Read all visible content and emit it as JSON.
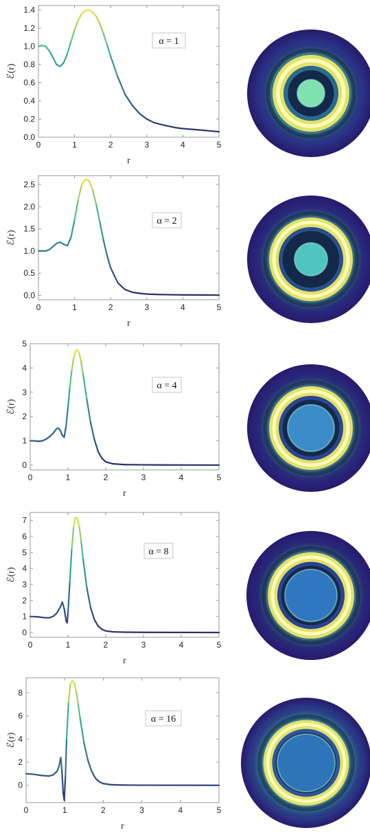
{
  "chart_data": [
    {
      "type": "line",
      "label": "α = 1",
      "xlabel": "r",
      "ylabel": "ℰ(r)",
      "xlim": [
        0,
        5
      ],
      "ylim": [
        0,
        1.45
      ],
      "xticks": [
        "0",
        "1",
        "2",
        "3",
        "4",
        "5"
      ],
      "yticks": [
        "0.0",
        "0.2",
        "0.4",
        "0.6",
        "0.8",
        "1.0",
        "1.2",
        "1.4"
      ],
      "x": [
        0,
        0.1,
        0.2,
        0.3,
        0.4,
        0.5,
        0.6,
        0.7,
        0.8,
        0.9,
        1.0,
        1.1,
        1.2,
        1.3,
        1.4,
        1.5,
        1.6,
        1.7,
        1.8,
        1.9,
        2.0,
        2.2,
        2.4,
        2.6,
        2.8,
        3.0,
        3.2,
        3.5,
        3.8,
        4.0,
        4.3,
        4.6,
        5.0
      ],
      "values": [
        1.0,
        1.01,
        1.0,
        0.95,
        0.88,
        0.8,
        0.78,
        0.82,
        0.92,
        1.05,
        1.18,
        1.29,
        1.36,
        1.395,
        1.4,
        1.38,
        1.33,
        1.25,
        1.14,
        1.02,
        0.89,
        0.66,
        0.47,
        0.35,
        0.26,
        0.2,
        0.16,
        0.13,
        0.105,
        0.095,
        0.085,
        0.075,
        0.06
      ]
    },
    {
      "type": "line",
      "label": "α = 2",
      "xlabel": "r",
      "ylabel": "ℰ(r)",
      "xlim": [
        0,
        5
      ],
      "ylim": [
        -0.1,
        2.7
      ],
      "xticks": [
        "0",
        "1",
        "2",
        "3",
        "4",
        "5"
      ],
      "yticks": [
        "0.0",
        "0.5",
        "1.0",
        "1.5",
        "2.0",
        "2.5"
      ],
      "x": [
        0,
        0.1,
        0.2,
        0.3,
        0.4,
        0.5,
        0.6,
        0.7,
        0.8,
        0.9,
        1.0,
        1.1,
        1.2,
        1.3,
        1.4,
        1.5,
        1.6,
        1.7,
        1.8,
        1.9,
        2.0,
        2.2,
        2.4,
        2.6,
        2.8,
        3.0,
        3.3,
        3.6,
        4.0,
        4.5,
        5.0
      ],
      "values": [
        1.0,
        1.0,
        1.0,
        1.03,
        1.1,
        1.17,
        1.2,
        1.15,
        1.12,
        1.3,
        1.7,
        2.15,
        2.5,
        2.62,
        2.58,
        2.38,
        2.05,
        1.65,
        1.25,
        0.9,
        0.62,
        0.28,
        0.13,
        0.07,
        0.045,
        0.03,
        0.02,
        0.015,
        0.01,
        0.008,
        0.005
      ]
    },
    {
      "type": "line",
      "label": "α = 4",
      "xlabel": "r",
      "ylabel": "ℰ(r)",
      "xlim": [
        0,
        5
      ],
      "ylim": [
        -0.2,
        5
      ],
      "xticks": [
        "0",
        "1",
        "2",
        "3",
        "4",
        "5"
      ],
      "yticks": [
        "0",
        "1",
        "2",
        "3",
        "4",
        "5"
      ],
      "x": [
        0,
        0.1,
        0.2,
        0.3,
        0.4,
        0.5,
        0.6,
        0.7,
        0.75,
        0.8,
        0.85,
        0.9,
        0.95,
        1.0,
        1.05,
        1.1,
        1.15,
        1.2,
        1.25,
        1.3,
        1.35,
        1.4,
        1.5,
        1.6,
        1.7,
        1.8,
        1.9,
        2.0,
        2.2,
        2.5,
        3.0,
        3.5,
        4.0,
        5.0
      ],
      "values": [
        1.0,
        1.0,
        0.98,
        0.99,
        1.05,
        1.15,
        1.3,
        1.5,
        1.52,
        1.42,
        1.22,
        1.15,
        1.6,
        2.4,
        3.2,
        3.9,
        4.4,
        4.7,
        4.75,
        4.6,
        4.25,
        3.75,
        2.7,
        1.75,
        1.05,
        0.55,
        0.28,
        0.13,
        0.05,
        0.02,
        0.01,
        0.005,
        0.003,
        0.0
      ]
    },
    {
      "type": "line",
      "label": "α = 8",
      "xlabel": "r",
      "ylabel": "ℰ(r)",
      "xlim": [
        0,
        5
      ],
      "ylim": [
        -0.3,
        7.5
      ],
      "xticks": [
        "0",
        "1",
        "2",
        "3",
        "4",
        "5"
      ],
      "yticks": [
        "0",
        "1",
        "2",
        "3",
        "4",
        "5",
        "6",
        "7"
      ],
      "x": [
        0,
        0.2,
        0.4,
        0.5,
        0.6,
        0.7,
        0.8,
        0.85,
        0.9,
        0.95,
        0.98,
        1.0,
        1.05,
        1.1,
        1.15,
        1.2,
        1.25,
        1.3,
        1.35,
        1.4,
        1.5,
        1.6,
        1.7,
        1.8,
        1.9,
        2.0,
        2.2,
        2.5,
        3.0,
        4.0,
        5.0
      ],
      "values": [
        1.0,
        0.98,
        0.92,
        0.92,
        1.0,
        1.2,
        1.6,
        1.9,
        1.5,
        0.75,
        0.6,
        1.2,
        3.2,
        5.2,
        6.6,
        7.2,
        7.15,
        6.6,
        5.7,
        4.6,
        2.8,
        1.55,
        0.8,
        0.4,
        0.2,
        0.1,
        0.04,
        0.02,
        0.01,
        0.005,
        0.0
      ]
    },
    {
      "type": "line",
      "label": "α = 16",
      "xlabel": "r",
      "ylabel": "ℰ(r)",
      "xlim": [
        0,
        5
      ],
      "ylim": [
        -1.5,
        9.3
      ],
      "xticks": [
        "0",
        "1",
        "2",
        "3",
        "4",
        "5"
      ],
      "yticks": [
        "0",
        "2",
        "4",
        "6",
        "8"
      ],
      "x": [
        0,
        0.2,
        0.4,
        0.6,
        0.7,
        0.8,
        0.85,
        0.9,
        0.93,
        0.96,
        0.99,
        1.02,
        1.05,
        1.1,
        1.15,
        1.2,
        1.25,
        1.3,
        1.35,
        1.4,
        1.5,
        1.6,
        1.7,
        1.8,
        1.9,
        2.0,
        2.2,
        2.5,
        3.0,
        4.0,
        5.0
      ],
      "values": [
        1.0,
        0.95,
        0.85,
        0.8,
        0.9,
        1.2,
        1.6,
        2.4,
        1.2,
        -0.6,
        -1.3,
        0.8,
        4.0,
        7.2,
        8.8,
        9.05,
        8.8,
        8.1,
        7.0,
        5.8,
        3.7,
        2.2,
        1.2,
        0.6,
        0.3,
        0.15,
        0.05,
        0.02,
        0.01,
        0.005,
        0.0
      ]
    }
  ]
}
